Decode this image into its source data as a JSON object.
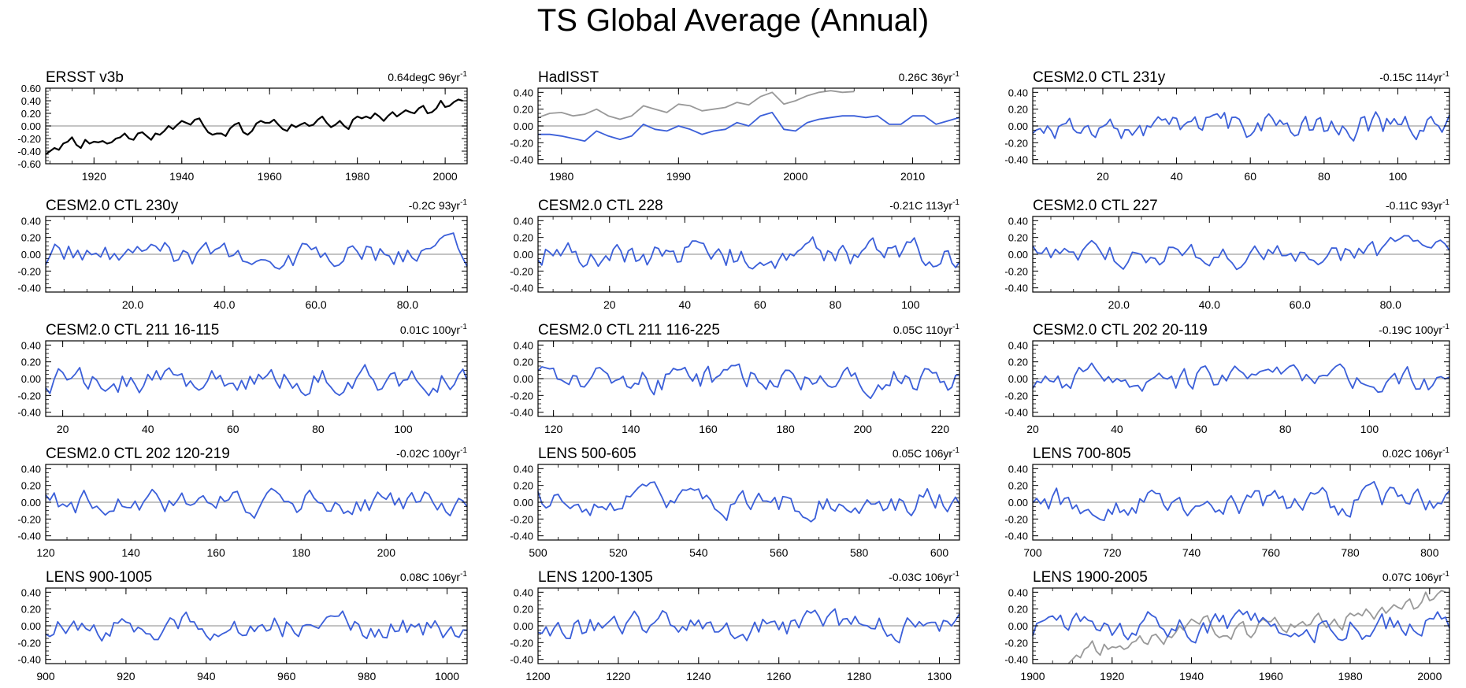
{
  "page": {
    "title": "TS Global Average (Annual)"
  },
  "colors": {
    "model": "#3b5fd9",
    "obs_black": "#000000",
    "obs_gray": "#999999",
    "zero_line": "#b0b0b0"
  },
  "chart_data": [
    {
      "type": "line",
      "name": "ERSST v3b",
      "stat": "0.64degC 96yr",
      "x0": 1909,
      "x1": 2005,
      "xticks": [
        1920,
        1940,
        1960,
        1980,
        2000
      ],
      "xticklabels": [
        "1920",
        "1940",
        "1960",
        "1980",
        "2000"
      ],
      "ylim": [
        -0.6,
        0.6
      ],
      "yticks": [
        -0.6,
        -0.4,
        -0.2,
        0,
        0.2,
        0.4,
        0.6
      ],
      "yticklabels": [
        "-0.60",
        "-0.40",
        "-0.20",
        "0.00",
        "0.20",
        "0.40",
        "0.60"
      ],
      "series": [
        {
          "style": "obs_black",
          "x_start": 1909,
          "values": [
            -0.45,
            -0.4,
            -0.35,
            -0.38,
            -0.28,
            -0.25,
            -0.18,
            -0.3,
            -0.35,
            -0.22,
            -0.28,
            -0.25,
            -0.26,
            -0.24,
            -0.28,
            -0.26,
            -0.2,
            -0.18,
            -0.12,
            -0.2,
            -0.22,
            -0.12,
            -0.1,
            -0.16,
            -0.22,
            -0.12,
            -0.14,
            -0.08,
            0.0,
            -0.05,
            0.02,
            0.08,
            0.05,
            0.02,
            0.1,
            0.12,
            0.0,
            -0.1,
            -0.14,
            -0.12,
            -0.12,
            -0.16,
            -0.04,
            0.02,
            0.05,
            -0.1,
            -0.14,
            -0.08,
            0.04,
            0.08,
            0.05,
            0.05,
            0.1,
            0.02,
            -0.05,
            -0.08,
            0.02,
            -0.02,
            0.02,
            0.05,
            0.0,
            0.02,
            0.1,
            0.15,
            0.05,
            -0.02,
            0.02,
            0.08,
            0.0,
            -0.05,
            0.1,
            0.15,
            0.12,
            0.15,
            0.12,
            0.2,
            0.15,
            0.08,
            0.16,
            0.22,
            0.15,
            0.2,
            0.25,
            0.22,
            0.2,
            0.28,
            0.32,
            0.2,
            0.22,
            0.28,
            0.4,
            0.3,
            0.32,
            0.38,
            0.42,
            0.4
          ]
        }
      ]
    },
    {
      "type": "line",
      "name": "HadISST",
      "stat": "0.26C 36yr",
      "x0": 1978,
      "x1": 2014,
      "xticks": [
        1980,
        1990,
        2000,
        2010
      ],
      "xticklabels": [
        "1980",
        "1990",
        "2000",
        "2010"
      ],
      "ylim": [
        -0.45,
        0.45
      ],
      "yticks": [
        -0.4,
        -0.2,
        0,
        0.2,
        0.4
      ],
      "yticklabels": [
        "-0.40",
        "-0.20",
        "0.00",
        "0.20",
        "0.40"
      ],
      "series": [
        {
          "style": "obs_gray",
          "x_start": 1978,
          "values": [
            0.1,
            0.15,
            0.16,
            0.12,
            0.14,
            0.2,
            0.12,
            0.08,
            0.12,
            0.24,
            0.2,
            0.16,
            0.26,
            0.24,
            0.18,
            0.2,
            0.22,
            0.28,
            0.25,
            0.35,
            0.4,
            0.26,
            0.3,
            0.36,
            0.4,
            0.42,
            0.4,
            0.41
          ]
        },
        {
          "style": "model",
          "x_start": 1978,
          "values": [
            -0.1,
            -0.1,
            -0.12,
            -0.15,
            -0.18,
            -0.06,
            -0.12,
            -0.16,
            -0.12,
            0.02,
            -0.04,
            -0.06,
            0.0,
            -0.04,
            -0.1,
            -0.06,
            -0.04,
            0.04,
            0.0,
            0.12,
            0.16,
            -0.04,
            -0.06,
            0.04,
            0.08,
            0.1,
            0.12,
            0.12,
            0.1,
            0.12,
            0.02,
            0.02,
            0.12,
            0.12,
            0.02,
            0.06,
            0.1
          ]
        }
      ]
    },
    {
      "type": "line",
      "name": "CESM2.0 CTL 231y",
      "stat": "-0.15C 114yr",
      "x0": 1,
      "x1": 114,
      "xticks": [
        20,
        40,
        60,
        80,
        100
      ],
      "xticklabels": [
        "20",
        "40",
        "60",
        "80",
        "100"
      ],
      "ylim": [
        -0.45,
        0.45
      ],
      "yticks": [
        -0.4,
        -0.2,
        0,
        0.2,
        0.4
      ],
      "yticklabels": [
        "-0.40",
        "-0.20",
        "0.00",
        "0.20",
        "0.40"
      ],
      "series": [
        {
          "style": "model",
          "seed": 231
        }
      ]
    },
    {
      "type": "line",
      "name": "CESM2.0 CTL 230y",
      "stat": "-0.2C 93yr",
      "x0": 1,
      "x1": 93,
      "xticks": [
        20,
        40,
        60,
        80
      ],
      "xticklabels": [
        "20.0",
        "40.0",
        "60.0",
        "80.0"
      ],
      "ylim": [
        -0.45,
        0.45
      ],
      "yticks": [
        -0.4,
        -0.2,
        0,
        0.2,
        0.4
      ],
      "yticklabels": [
        "-0.40",
        "-0.20",
        "0.00",
        "0.20",
        "0.40"
      ],
      "series": [
        {
          "style": "model",
          "seed": 230
        }
      ]
    },
    {
      "type": "line",
      "name": "CESM2.0 CTL 228",
      "stat": "-0.21C 113yr",
      "x0": 1,
      "x1": 113,
      "xticks": [
        20,
        40,
        60,
        80,
        100
      ],
      "xticklabels": [
        "20",
        "40",
        "60",
        "80",
        "100"
      ],
      "ylim": [
        -0.45,
        0.45
      ],
      "yticks": [
        -0.4,
        -0.2,
        0,
        0.2,
        0.4
      ],
      "yticklabels": [
        "-0.40",
        "-0.20",
        "0.00",
        "0.20",
        "0.40"
      ],
      "series": [
        {
          "style": "model",
          "seed": 228
        }
      ]
    },
    {
      "type": "line",
      "name": "CESM2.0 CTL 227",
      "stat": "-0.11C 93yr",
      "x0": 1,
      "x1": 93,
      "xticks": [
        20,
        40,
        60,
        80
      ],
      "xticklabels": [
        "20.0",
        "40.0",
        "60.0",
        "80.0"
      ],
      "ylim": [
        -0.45,
        0.45
      ],
      "yticks": [
        -0.4,
        -0.2,
        0,
        0.2,
        0.4
      ],
      "yticklabels": [
        "-0.40",
        "-0.20",
        "0.00",
        "0.20",
        "0.40"
      ],
      "series": [
        {
          "style": "model",
          "seed": 227
        }
      ]
    },
    {
      "type": "line",
      "name": "CESM2.0 CTL 211 16-115",
      "stat": "0.01C 100yr",
      "x0": 16,
      "x1": 115,
      "xticks": [
        20,
        40,
        60,
        80,
        100
      ],
      "xticklabels": [
        "20",
        "40",
        "60",
        "80",
        "100"
      ],
      "ylim": [
        -0.45,
        0.45
      ],
      "yticks": [
        -0.4,
        -0.2,
        0,
        0.2,
        0.4
      ],
      "yticklabels": [
        "-0.40",
        "-0.20",
        "0.00",
        "0.20",
        "0.40"
      ],
      "series": [
        {
          "style": "model",
          "seed": 211
        }
      ]
    },
    {
      "type": "line",
      "name": "CESM2.0 CTL 211 116-225",
      "stat": "0.05C 110yr",
      "x0": 116,
      "x1": 225,
      "xticks": [
        120,
        140,
        160,
        180,
        200,
        220
      ],
      "xticklabels": [
        "120",
        "140",
        "160",
        "180",
        "200",
        "220"
      ],
      "ylim": [
        -0.45,
        0.45
      ],
      "yticks": [
        -0.4,
        -0.2,
        0,
        0.2,
        0.4
      ],
      "yticklabels": [
        "-0.40",
        "-0.20",
        "0.00",
        "0.20",
        "0.40"
      ],
      "series": [
        {
          "style": "model",
          "seed": 212
        }
      ]
    },
    {
      "type": "line",
      "name": "CESM2.0 CTL 202 20-119",
      "stat": "-0.19C 100yr",
      "x0": 20,
      "x1": 119,
      "xticks": [
        20,
        40,
        60,
        80,
        100
      ],
      "xticklabels": [
        "20",
        "40",
        "60",
        "80",
        "100"
      ],
      "ylim": [
        -0.45,
        0.45
      ],
      "yticks": [
        -0.4,
        -0.2,
        0,
        0.2,
        0.4
      ],
      "yticklabels": [
        "-0.40",
        "-0.20",
        "0.00",
        "0.20",
        "0.40"
      ],
      "series": [
        {
          "style": "model",
          "seed": 202
        }
      ]
    },
    {
      "type": "line",
      "name": "CESM2.0 CTL 202 120-219",
      "stat": "-0.02C 100yr",
      "x0": 120,
      "x1": 219,
      "xticks": [
        120,
        140,
        160,
        180,
        200
      ],
      "xticklabels": [
        "120",
        "140",
        "160",
        "180",
        "200"
      ],
      "ylim": [
        -0.45,
        0.45
      ],
      "yticks": [
        -0.4,
        -0.2,
        0,
        0.2,
        0.4
      ],
      "yticklabels": [
        "-0.40",
        "-0.20",
        "0.00",
        "0.20",
        "0.40"
      ],
      "series": [
        {
          "style": "model",
          "seed": 203
        }
      ]
    },
    {
      "type": "line",
      "name": "LENS 500-605",
      "stat": "0.05C 106yr",
      "x0": 500,
      "x1": 605,
      "xticks": [
        500,
        520,
        540,
        560,
        580,
        600
      ],
      "xticklabels": [
        "500",
        "520",
        "540",
        "560",
        "580",
        "600"
      ],
      "ylim": [
        -0.45,
        0.45
      ],
      "yticks": [
        -0.4,
        -0.2,
        0,
        0.2,
        0.4
      ],
      "yticklabels": [
        "-0.40",
        "-0.20",
        "0.00",
        "0.20",
        "0.40"
      ],
      "series": [
        {
          "style": "model",
          "seed": 500
        }
      ]
    },
    {
      "type": "line",
      "name": "LENS 700-805",
      "stat": "0.02C 106yr",
      "x0": 700,
      "x1": 805,
      "xticks": [
        700,
        720,
        740,
        760,
        780,
        800
      ],
      "xticklabels": [
        "700",
        "720",
        "740",
        "760",
        "780",
        "800"
      ],
      "ylim": [
        -0.45,
        0.45
      ],
      "yticks": [
        -0.4,
        -0.2,
        0,
        0.2,
        0.4
      ],
      "yticklabels": [
        "-0.40",
        "-0.20",
        "0.00",
        "0.20",
        "0.40"
      ],
      "series": [
        {
          "style": "model",
          "seed": 700
        }
      ]
    },
    {
      "type": "line",
      "name": "LENS 900-1005",
      "stat": "0.08C 106yr",
      "x0": 900,
      "x1": 1005,
      "xticks": [
        900,
        920,
        940,
        960,
        980,
        1000
      ],
      "xticklabels": [
        "900",
        "920",
        "940",
        "960",
        "980",
        "1000"
      ],
      "ylim": [
        -0.45,
        0.45
      ],
      "yticks": [
        -0.4,
        -0.2,
        0,
        0.2,
        0.4
      ],
      "yticklabels": [
        "-0.40",
        "-0.20",
        "0.00",
        "0.20",
        "0.40"
      ],
      "series": [
        {
          "style": "model",
          "seed": 900
        }
      ]
    },
    {
      "type": "line",
      "name": "LENS 1200-1305",
      "stat": "-0.03C 106yr",
      "x0": 1200,
      "x1": 1305,
      "xticks": [
        1200,
        1220,
        1240,
        1260,
        1280,
        1300
      ],
      "xticklabels": [
        "1200",
        "1220",
        "1240",
        "1260",
        "1280",
        "1300"
      ],
      "ylim": [
        -0.45,
        0.45
      ],
      "yticks": [
        -0.4,
        -0.2,
        0,
        0.2,
        0.4
      ],
      "yticklabels": [
        "-0.40",
        "-0.20",
        "0.00",
        "0.20",
        "0.40"
      ],
      "series": [
        {
          "style": "model",
          "seed": 1200
        }
      ]
    },
    {
      "type": "line",
      "name": "LENS 1900-2005",
      "stat": "0.07C 106yr",
      "x0": 1900,
      "x1": 2005,
      "xticks": [
        1900,
        1920,
        1940,
        1960,
        1980,
        2000
      ],
      "xticklabels": [
        "1900",
        "1920",
        "1940",
        "1960",
        "1980",
        "2000"
      ],
      "ylim": [
        -0.45,
        0.45
      ],
      "yticks": [
        -0.4,
        -0.2,
        0,
        0.2,
        0.4
      ],
      "yticklabels": [
        "-0.40",
        "-0.20",
        "0.00",
        "0.20",
        "0.40"
      ],
      "series": [
        {
          "style": "obs_gray",
          "x_start": 1909,
          "values": [
            -0.45,
            -0.4,
            -0.35,
            -0.38,
            -0.28,
            -0.25,
            -0.18,
            -0.3,
            -0.35,
            -0.22,
            -0.28,
            -0.25,
            -0.26,
            -0.24,
            -0.28,
            -0.26,
            -0.2,
            -0.18,
            -0.12,
            -0.2,
            -0.22,
            -0.12,
            -0.1,
            -0.16,
            -0.22,
            -0.12,
            -0.14,
            -0.08,
            0.0,
            -0.05,
            0.02,
            0.08,
            0.05,
            0.02,
            0.1,
            0.12,
            0.0,
            -0.1,
            -0.14,
            -0.12,
            -0.12,
            -0.16,
            -0.04,
            0.02,
            0.05,
            -0.1,
            -0.14,
            -0.08,
            0.04,
            0.08,
            0.05,
            0.05,
            0.1,
            0.02,
            -0.05,
            -0.08,
            0.02,
            -0.02,
            0.02,
            0.05,
            0.0,
            0.02,
            0.1,
            0.15,
            0.05,
            -0.02,
            0.02,
            0.08,
            0.0,
            -0.05,
            0.1,
            0.15,
            0.12,
            0.15,
            0.12,
            0.2,
            0.15,
            0.08,
            0.16,
            0.22,
            0.15,
            0.2,
            0.25,
            0.22,
            0.2,
            0.28,
            0.32,
            0.2,
            0.22,
            0.28,
            0.4,
            0.3,
            0.32,
            0.38,
            0.42,
            0.4
          ]
        },
        {
          "style": "model",
          "seed": 1900
        }
      ]
    }
  ]
}
